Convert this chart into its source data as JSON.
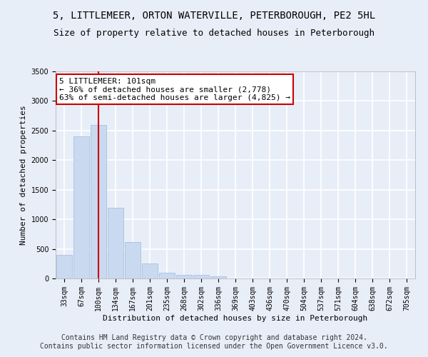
{
  "title_line1": "5, LITTLEMEER, ORTON WATERVILLE, PETERBOROUGH, PE2 5HL",
  "title_line2": "Size of property relative to detached houses in Peterborough",
  "xlabel": "Distribution of detached houses by size in Peterborough",
  "ylabel": "Number of detached properties",
  "categories": [
    "33sqm",
    "67sqm",
    "100sqm",
    "134sqm",
    "167sqm",
    "201sqm",
    "235sqm",
    "268sqm",
    "302sqm",
    "336sqm",
    "369sqm",
    "403sqm",
    "436sqm",
    "470sqm",
    "504sqm",
    "537sqm",
    "571sqm",
    "604sqm",
    "638sqm",
    "672sqm",
    "705sqm"
  ],
  "values": [
    400,
    2400,
    2600,
    1200,
    620,
    250,
    100,
    60,
    55,
    40,
    5,
    5,
    0,
    0,
    0,
    0,
    0,
    0,
    0,
    0,
    0
  ],
  "bar_color": "#c9d9f0",
  "bar_edge_color": "#a0b8d8",
  "vline_x_index": 2,
  "vline_color": "#cc0000",
  "annotation_line1": "5 LITTLEMEER: 101sqm",
  "annotation_line2": "← 36% of detached houses are smaller (2,778)",
  "annotation_line3": "63% of semi-detached houses are larger (4,825) →",
  "annotation_box_color": "white",
  "annotation_box_edge": "#cc0000",
  "ylim": [
    0,
    3500
  ],
  "yticks": [
    0,
    500,
    1000,
    1500,
    2000,
    2500,
    3000,
    3500
  ],
  "footnote": "Contains HM Land Registry data © Crown copyright and database right 2024.\nContains public sector information licensed under the Open Government Licence v3.0.",
  "bg_color": "#e8eef8",
  "plot_bg_color": "#e8eef8",
  "grid_color": "white",
  "title_fontsize": 10,
  "subtitle_fontsize": 9,
  "axis_label_fontsize": 8,
  "tick_fontsize": 7,
  "annotation_fontsize": 8,
  "footnote_fontsize": 7
}
